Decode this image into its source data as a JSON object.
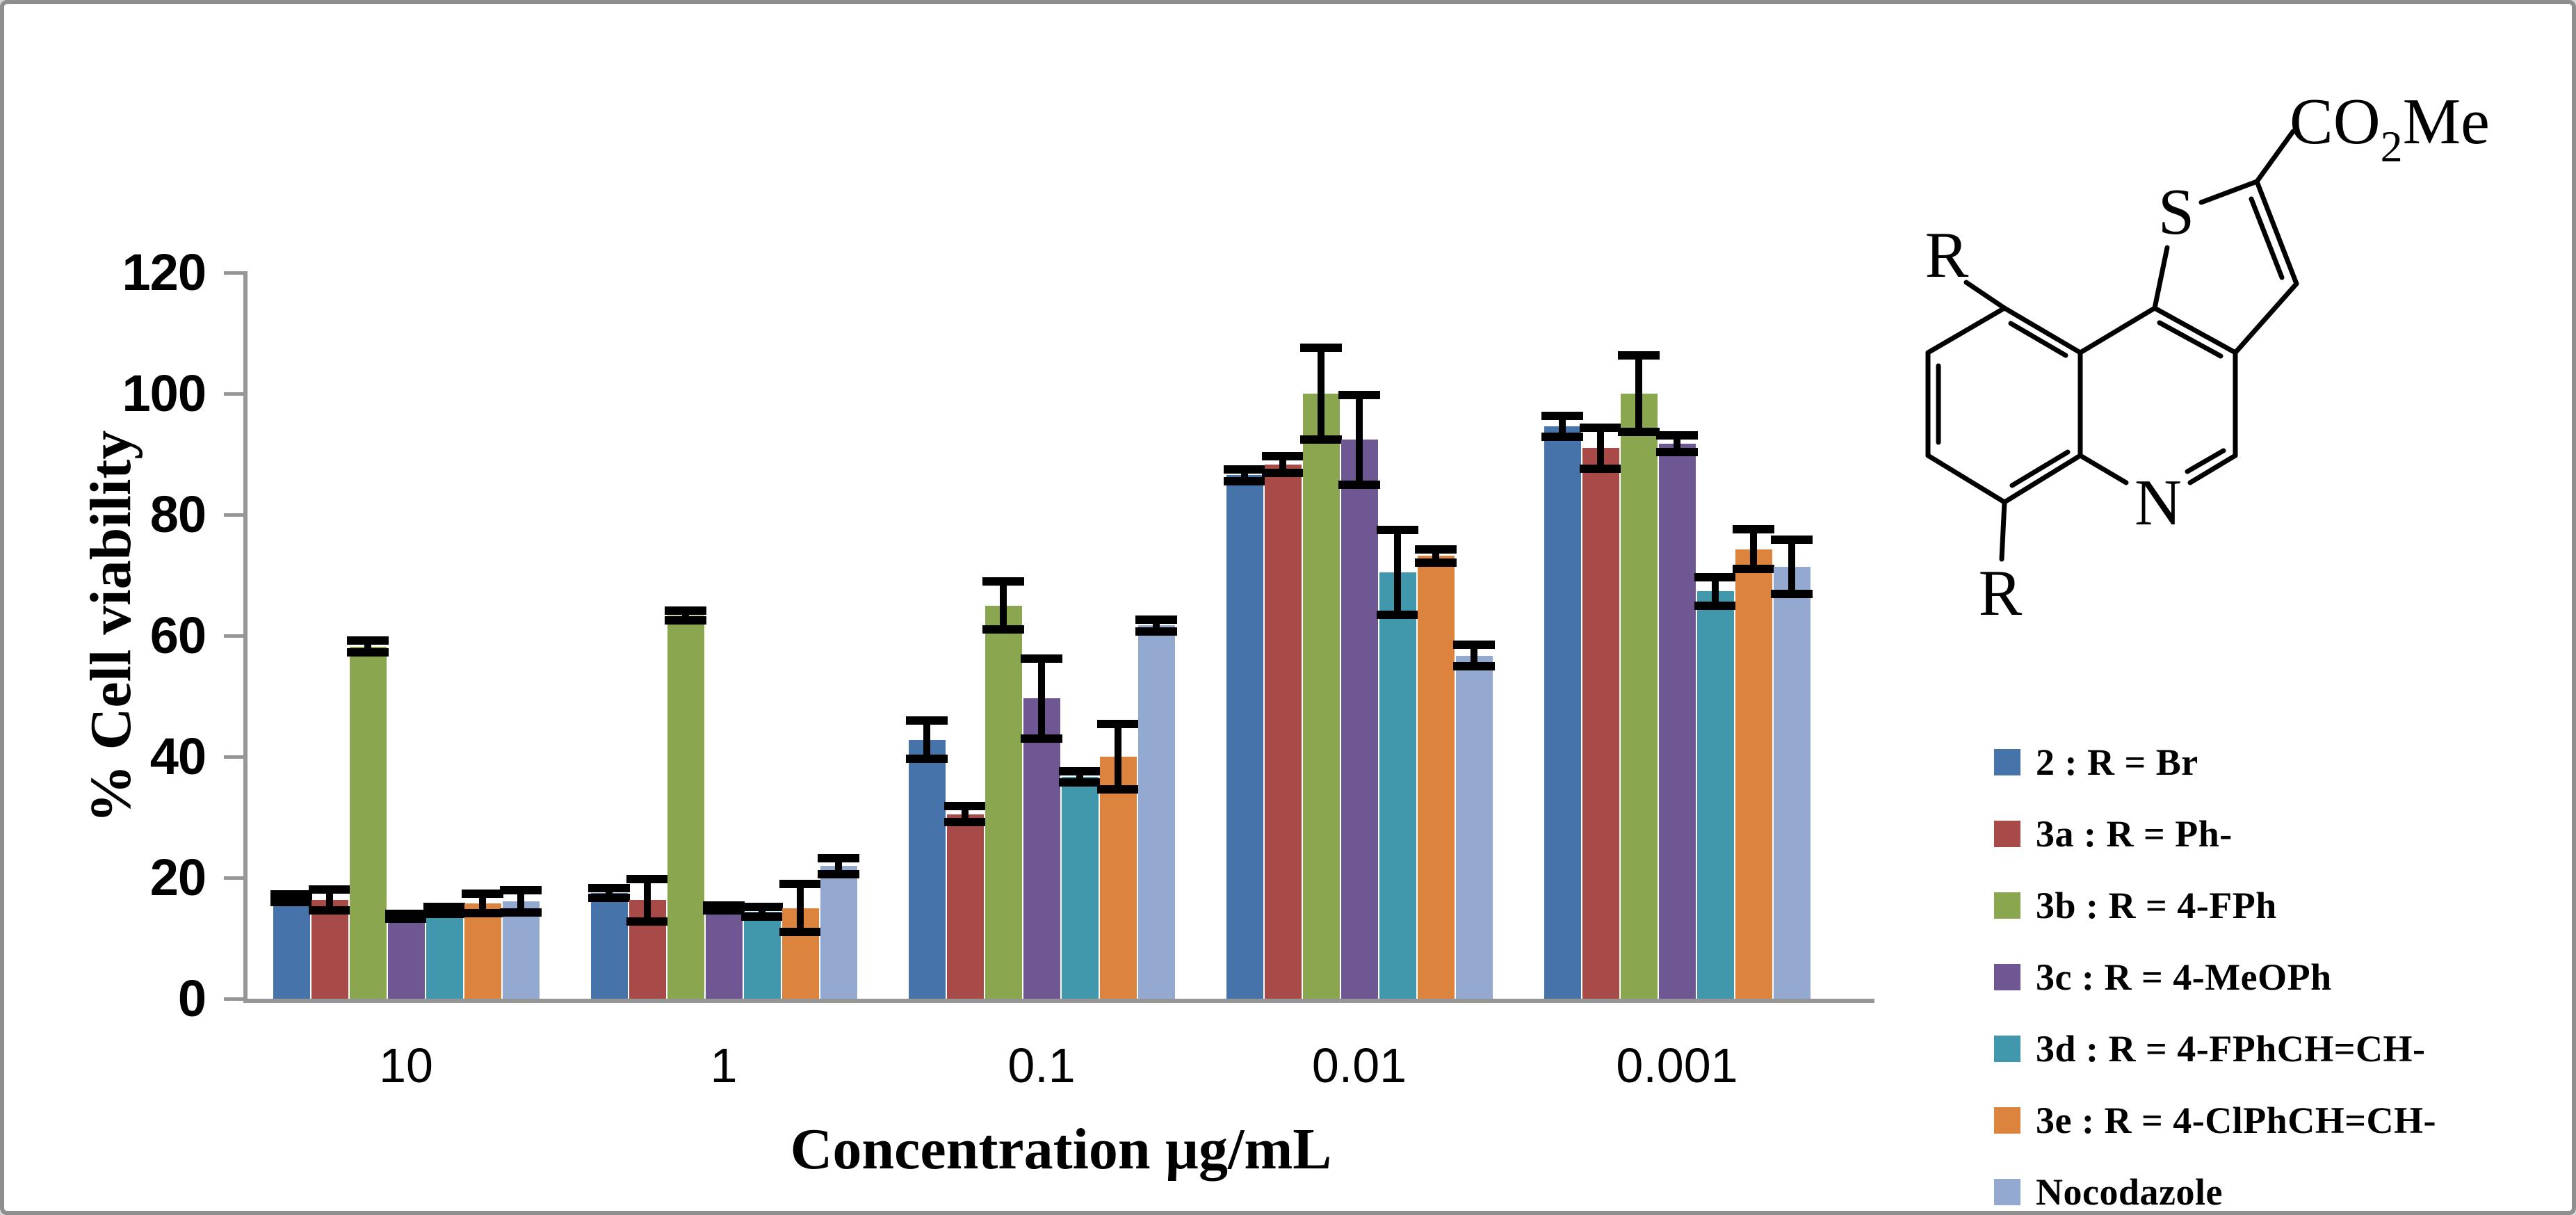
{
  "chart_data": {
    "type": "bar",
    "title": "",
    "xlabel": "Concentration µg/mL",
    "ylabel": "% Cell viability",
    "ylim": [
      0,
      120
    ],
    "yticks": [
      0,
      20,
      40,
      60,
      80,
      100,
      120
    ],
    "grid": false,
    "legend_position": "right",
    "error_bars": true,
    "axis_color": "#969696",
    "categories": [
      "10",
      "1",
      "0.1",
      "0.01",
      "0.001"
    ],
    "series": [
      {
        "name": "2 : R = Br",
        "color": "#4673A9",
        "values": [
          16.6,
          17.5,
          42.8,
          86.5,
          94.6
        ],
        "errors": [
          0.6,
          0.8,
          3.2,
          1.0,
          1.7
        ]
      },
      {
        "name": "3a : R = Ph-",
        "color": "#A84A47",
        "values": [
          16.3,
          16.3,
          30.5,
          88.3,
          91.0
        ],
        "errors": [
          1.7,
          3.5,
          1.3,
          1.4,
          3.4
        ]
      },
      {
        "name": "3b : R = 4-FPh",
        "color": "#8AA64E",
        "values": [
          58.2,
          63.3,
          65.0,
          100.0,
          100.0
        ],
        "errors": [
          1.0,
          0.8,
          4.0,
          7.6,
          6.3
        ]
      },
      {
        "name": "3c : R = 4-MeOPh",
        "color": "#6F5793",
        "values": [
          13.6,
          15.0,
          49.6,
          92.4,
          91.7
        ],
        "errors": [
          0.4,
          0.4,
          6.6,
          7.4,
          1.4
        ]
      },
      {
        "name": "3d : R = 4-FPhCH=CH-",
        "color": "#4197AC",
        "values": [
          14.6,
          14.4,
          36.7,
          70.5,
          67.3
        ],
        "errors": [
          0.6,
          0.8,
          0.9,
          7.0,
          2.4
        ]
      },
      {
        "name": "3e : R = 4-ClPhCH=CH-",
        "color": "#DC843E",
        "values": [
          15.7,
          15.0,
          40.0,
          73.2,
          74.3
        ],
        "errors": [
          1.6,
          4.0,
          5.4,
          1.1,
          3.3
        ]
      },
      {
        "name": "Nocodazole",
        "color": "#94A9D0",
        "values": [
          16.1,
          21.9,
          61.7,
          56.7,
          71.4
        ],
        "errors": [
          1.8,
          1.3,
          1.0,
          1.8,
          4.5
        ]
      }
    ]
  },
  "structure": {
    "atom_s": "S",
    "atom_n": "N",
    "r_top": "R",
    "r_bottom": "R",
    "ester": {
      "co": "CO",
      "sub": "2",
      "me": "Me"
    }
  }
}
